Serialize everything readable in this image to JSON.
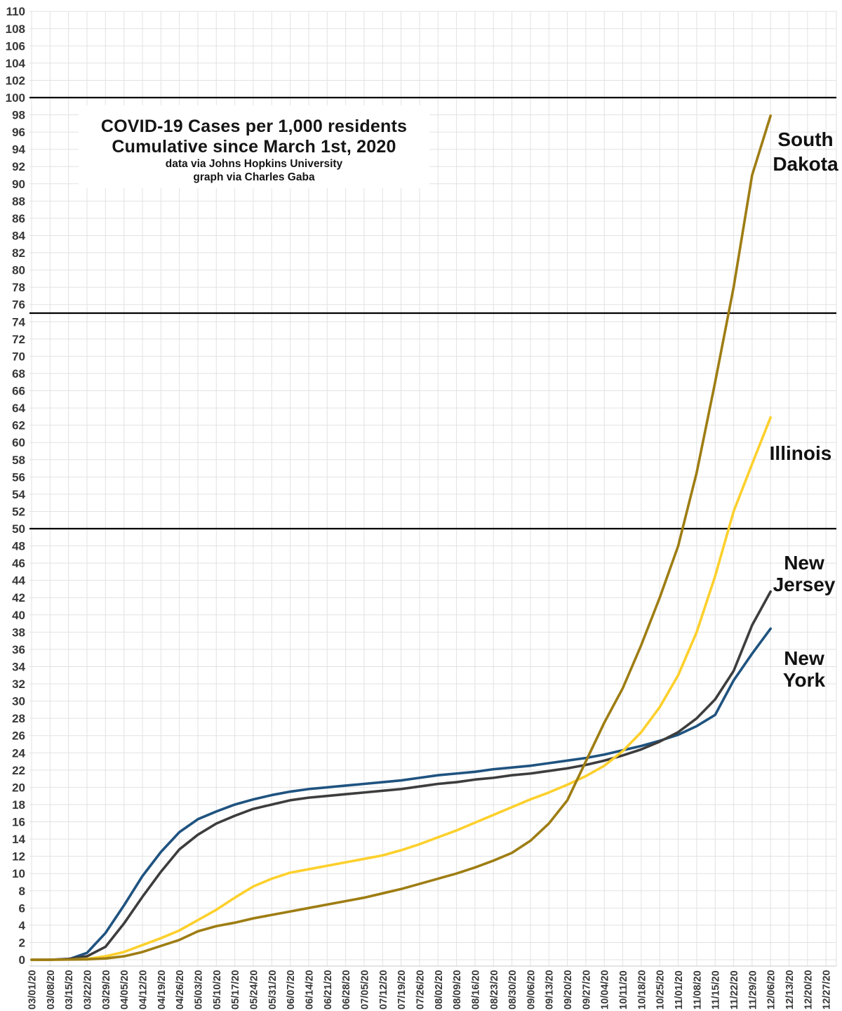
{
  "chart_data": {
    "type": "line",
    "title": "COVID-19 Cases per 1,000 residents",
    "subtitle": "Cumulative since March 1st, 2020",
    "credit_line_1": "data via Johns Hopkins University",
    "credit_line_2": "graph via Charles Gaba",
    "ylim": [
      0,
      110
    ],
    "y_tick_step": 2,
    "grid": true,
    "reference_lines": [
      50,
      75,
      100
    ],
    "legend_position": "end-of-line-labels",
    "x_tick_labels": [
      "03/01/20",
      "03/08/20",
      "03/15/20",
      "03/22/20",
      "03/29/20",
      "04/05/20",
      "04/12/20",
      "04/19/20",
      "04/26/20",
      "05/03/20",
      "05/10/20",
      "05/17/20",
      "05/24/20",
      "05/31/20",
      "06/07/20",
      "06/14/20",
      "06/21/20",
      "06/28/20",
      "07/05/20",
      "07/12/20",
      "07/19/20",
      "07/26/20",
      "08/02/20",
      "08/09/20",
      "08/16/20",
      "08/23/20",
      "08/30/20",
      "09/06/20",
      "09/13/20",
      "09/20/20",
      "09/27/20",
      "10/04/20",
      "10/11/20",
      "10/18/20",
      "10/25/20",
      "11/01/20",
      "11/08/20",
      "11/15/20",
      "11/22/20",
      "11/29/20",
      "12/06/20",
      "12/13/20",
      "12/20/20",
      "12/27/20"
    ],
    "x": [
      "03/01/20",
      "03/08/20",
      "03/15/20",
      "03/22/20",
      "03/29/20",
      "04/05/20",
      "04/12/20",
      "04/19/20",
      "04/26/20",
      "05/03/20",
      "05/10/20",
      "05/17/20",
      "05/24/20",
      "05/31/20",
      "06/07/20",
      "06/14/20",
      "06/21/20",
      "06/28/20",
      "07/05/20",
      "07/12/20",
      "07/19/20",
      "07/26/20",
      "08/02/20",
      "08/09/20",
      "08/16/20",
      "08/23/20",
      "08/30/20",
      "09/06/20",
      "09/13/20",
      "09/20/20",
      "09/27/20",
      "10/04/20",
      "10/11/20",
      "10/18/20",
      "10/25/20",
      "11/01/20",
      "11/08/20",
      "11/15/20",
      "11/22/20",
      "11/29/20",
      "12/06/20"
    ],
    "series": [
      {
        "id": "south-dakota",
        "name": "South Dakota",
        "label_lines": [
          "South",
          "Dakota"
        ],
        "color": "#9e7d13",
        "values": [
          0,
          0,
          0.02,
          0.05,
          0.15,
          0.4,
          0.9,
          1.6,
          2.3,
          3.3,
          3.9,
          4.3,
          4.8,
          5.2,
          5.6,
          6.0,
          6.4,
          6.8,
          7.2,
          7.7,
          8.2,
          8.8,
          9.4,
          10.0,
          10.7,
          11.5,
          12.4,
          13.8,
          15.8,
          18.5,
          23.0,
          27.5,
          31.5,
          36.5,
          42.0,
          48.0,
          56.5,
          67.0,
          78.0,
          91.0,
          97.9
        ]
      },
      {
        "id": "illinois",
        "name": "Illinois",
        "label_lines": [
          "Illinois"
        ],
        "color": "#fdd02c",
        "values": [
          0,
          0,
          0.02,
          0.1,
          0.4,
          0.9,
          1.7,
          2.5,
          3.4,
          4.6,
          5.8,
          7.2,
          8.5,
          9.4,
          10.1,
          10.5,
          10.9,
          11.3,
          11.7,
          12.1,
          12.7,
          13.4,
          14.2,
          15.0,
          15.9,
          16.8,
          17.7,
          18.6,
          19.4,
          20.3,
          21.3,
          22.5,
          24.2,
          26.4,
          29.3,
          33.0,
          38.0,
          44.5,
          52.0,
          57.5,
          62.9
        ]
      },
      {
        "id": "new-jersey",
        "name": "New Jersey",
        "label_lines": [
          "New",
          "Jersey"
        ],
        "color": "#3d3d3d",
        "values": [
          0,
          0,
          0.1,
          0.4,
          1.5,
          4.2,
          7.3,
          10.2,
          12.8,
          14.5,
          15.8,
          16.7,
          17.5,
          18.0,
          18.5,
          18.8,
          19.0,
          19.2,
          19.4,
          19.6,
          19.8,
          20.1,
          20.4,
          20.6,
          20.9,
          21.1,
          21.4,
          21.6,
          21.9,
          22.2,
          22.6,
          23.1,
          23.7,
          24.4,
          25.3,
          26.4,
          28.0,
          30.2,
          33.5,
          38.8,
          42.7
        ]
      },
      {
        "id": "new-york",
        "name": "New York",
        "label_lines": [
          "New",
          "York"
        ],
        "color": "#1f5380",
        "values": [
          0,
          0.01,
          0.05,
          0.8,
          3.1,
          6.3,
          9.7,
          12.5,
          14.8,
          16.3,
          17.2,
          18.0,
          18.6,
          19.1,
          19.5,
          19.8,
          20.0,
          20.2,
          20.4,
          20.6,
          20.8,
          21.1,
          21.4,
          21.6,
          21.8,
          22.1,
          22.3,
          22.5,
          22.8,
          23.1,
          23.4,
          23.8,
          24.3,
          24.8,
          25.4,
          26.1,
          27.1,
          28.4,
          32.4,
          35.5,
          38.4
        ]
      }
    ],
    "style": {
      "grid_color": "#e2e2e2",
      "reference_line_color": "#000000",
      "tick_label_color": "#373737",
      "background": "#ffffff"
    }
  }
}
